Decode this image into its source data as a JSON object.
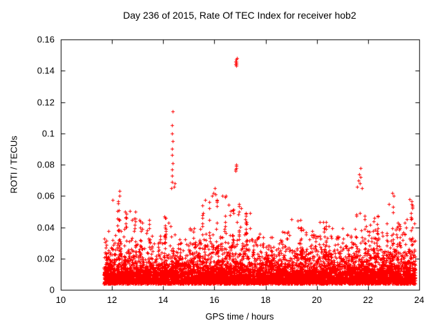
{
  "chart_data": {
    "type": "scatter",
    "title": "Day 236 of 2015, Rate Of TEC Index for receiver hob2",
    "xlabel": "GPS time / hours",
    "ylabel": "ROTI / TECUs",
    "xlim": [
      10,
      24
    ],
    "ylim": [
      0,
      0.16
    ],
    "xtick_values": [
      10,
      12,
      14,
      16,
      18,
      20,
      22,
      24
    ],
    "xtick_labels": [
      "10",
      "12",
      "14",
      "16",
      "18",
      "20",
      "22",
      "24"
    ],
    "ytick_values": [
      0,
      0.02,
      0.04,
      0.06,
      0.08,
      0.1,
      0.12,
      0.14,
      0.16
    ],
    "ytick_labels": [
      "0",
      "0.02",
      "0.04",
      "0.06",
      "0.08",
      "0.1",
      "0.12",
      "0.14",
      "0.16"
    ],
    "grid": false,
    "legend": "none",
    "marker": "+",
    "marker_color": "#ff0000",
    "axis_color": "#000000",
    "series": [
      {
        "name": "ROTI",
        "time_range": [
          11.68,
          23.85
        ],
        "dense_band": {
          "y_floor": 0.003,
          "y_typical": 0.012,
          "description": "dense baseline scatter between ~0.003 and ~0.03 TECU across full time range"
        },
        "bins": [
          [
            11.68,
            12.0,
            0.038,
            260
          ],
          [
            12.0,
            12.5,
            0.058,
            320
          ],
          [
            12.5,
            13.0,
            0.052,
            300
          ],
          [
            13.0,
            13.5,
            0.046,
            280
          ],
          [
            13.5,
            14.0,
            0.035,
            270
          ],
          [
            14.0,
            14.5,
            0.048,
            300
          ],
          [
            14.5,
            15.0,
            0.033,
            270
          ],
          [
            15.0,
            15.5,
            0.04,
            280
          ],
          [
            15.5,
            16.0,
            0.058,
            320
          ],
          [
            16.0,
            16.5,
            0.06,
            330
          ],
          [
            16.5,
            17.0,
            0.056,
            330
          ],
          [
            17.0,
            17.5,
            0.05,
            300
          ],
          [
            17.5,
            18.0,
            0.036,
            290
          ],
          [
            18.0,
            18.5,
            0.034,
            290
          ],
          [
            18.5,
            19.0,
            0.038,
            290
          ],
          [
            19.0,
            19.5,
            0.045,
            290
          ],
          [
            19.5,
            20.0,
            0.038,
            290
          ],
          [
            20.0,
            20.5,
            0.044,
            300
          ],
          [
            20.5,
            21.0,
            0.04,
            290
          ],
          [
            21.0,
            21.5,
            0.036,
            280
          ],
          [
            21.5,
            22.0,
            0.05,
            300
          ],
          [
            22.0,
            22.5,
            0.048,
            300
          ],
          [
            22.5,
            23.0,
            0.055,
            300
          ],
          [
            23.0,
            23.5,
            0.044,
            290
          ],
          [
            23.5,
            23.85,
            0.058,
            240
          ]
        ],
        "outliers": [
          [
            12.28,
            0.063
          ],
          [
            12.3,
            0.06
          ],
          [
            14.32,
            0.065
          ],
          [
            14.34,
            0.069
          ],
          [
            14.35,
            0.073
          ],
          [
            14.33,
            0.077
          ],
          [
            14.36,
            0.081
          ],
          [
            14.34,
            0.086
          ],
          [
            14.35,
            0.09
          ],
          [
            14.36,
            0.095
          ],
          [
            14.34,
            0.1
          ],
          [
            14.35,
            0.105
          ],
          [
            14.36,
            0.114
          ],
          [
            14.44,
            0.068
          ],
          [
            14.43,
            0.066
          ],
          [
            15.92,
            0.06
          ],
          [
            15.97,
            0.062
          ],
          [
            16.02,
            0.065
          ],
          [
            16.05,
            0.061
          ],
          [
            16.3,
            0.06
          ],
          [
            16.82,
            0.144
          ],
          [
            16.83,
            0.146
          ],
          [
            16.84,
            0.145
          ],
          [
            16.85,
            0.147
          ],
          [
            16.86,
            0.146
          ],
          [
            16.85,
            0.144
          ],
          [
            16.87,
            0.148
          ],
          [
            16.84,
            0.143
          ],
          [
            16.82,
            0.076
          ],
          [
            16.83,
            0.077
          ],
          [
            16.84,
            0.079
          ],
          [
            16.85,
            0.08
          ],
          [
            16.86,
            0.078
          ],
          [
            17.05,
            0.052
          ],
          [
            21.58,
            0.066
          ],
          [
            21.62,
            0.07
          ],
          [
            21.66,
            0.074
          ],
          [
            21.7,
            0.078
          ],
          [
            21.72,
            0.072
          ],
          [
            21.75,
            0.065
          ],
          [
            21.68,
            0.068
          ],
          [
            22.95,
            0.062
          ],
          [
            23.0,
            0.06
          ],
          [
            23.62,
            0.058
          ],
          [
            23.7,
            0.055
          ]
        ]
      }
    ]
  }
}
